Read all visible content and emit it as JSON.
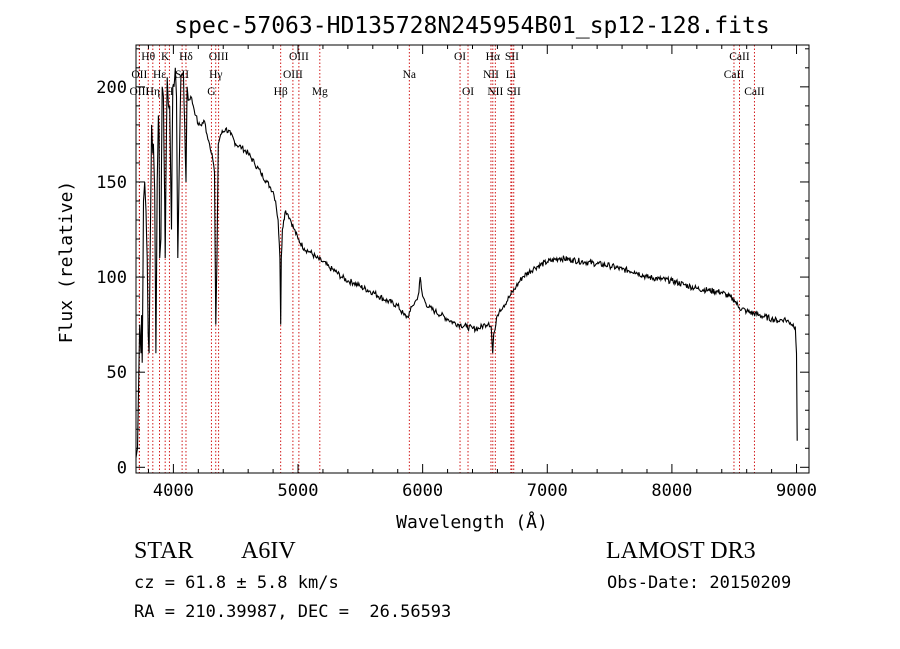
{
  "chart_data": {
    "type": "line",
    "title": "spec-57063-HD135728N245954B01_sp12-128.fits",
    "xlabel": "Wavelength (Å)",
    "ylabel": "Flux (relative)",
    "xlim": [
      3700,
      9100
    ],
    "ylim": [
      -3,
      222
    ],
    "x_ticks": [
      4000,
      5000,
      6000,
      7000,
      8000,
      9000
    ],
    "x_tick_labels": [
      "4000",
      "5000",
      "6000",
      "7000",
      "8000",
      "9000"
    ],
    "y_ticks": [
      0,
      50,
      100,
      150,
      200
    ],
    "y_tick_labels": [
      "0",
      "50",
      "100",
      "150",
      "200"
    ],
    "series": [
      {
        "name": "spectrum",
        "x": [
          3700,
          3712,
          3720,
          3730,
          3740,
          3745,
          3750,
          3760,
          3770,
          3780,
          3790,
          3798,
          3805,
          3815,
          3825,
          3835,
          3840,
          3850,
          3860,
          3870,
          3880,
          3885,
          3890,
          3900,
          3910,
          3920,
          3930,
          3934,
          3940,
          3950,
          3960,
          3970,
          3975,
          3985,
          3995,
          4005,
          4015,
          4025,
          4035,
          4045,
          4060,
          4080,
          4101,
          4110,
          4120,
          4140,
          4160,
          4180,
          4200,
          4220,
          4250,
          4270,
          4290,
          4310,
          4330,
          4340,
          4350,
          4360,
          4380,
          4420,
          4460,
          4500,
          4550,
          4600,
          4650,
          4700,
          4750,
          4780,
          4800,
          4820,
          4840,
          4855,
          4861,
          4866,
          4875,
          4885,
          4900,
          4920,
          4940,
          4970,
          5000,
          5050,
          5100,
          5150,
          5200,
          5250,
          5300,
          5350,
          5400,
          5450,
          5500,
          5600,
          5700,
          5800,
          5850,
          5880,
          5900,
          5920,
          5950,
          5970,
          5980,
          5990,
          6000,
          6020,
          6050,
          6100,
          6150,
          6200,
          6250,
          6300,
          6350,
          6400,
          6450,
          6500,
          6530,
          6550,
          6562,
          6570,
          6580,
          6600,
          6620,
          6650,
          6700,
          6750,
          6800,
          6900,
          7000,
          7100,
          7200,
          7300,
          7400,
          7500,
          7600,
          7700,
          7800,
          7900,
          8000,
          8100,
          8200,
          8300,
          8400,
          8500,
          8540,
          8600,
          8700,
          8800,
          8850,
          8900,
          8950,
          8990,
          9000,
          9005
        ],
        "y": [
          5,
          10,
          40,
          75,
          60,
          80,
          55,
          140,
          150,
          135,
          110,
          70,
          60,
          120,
          180,
          165,
          170,
          145,
          60,
          150,
          185,
          175,
          110,
          120,
          200,
          195,
          140,
          110,
          150,
          205,
          190,
          190,
          168,
          125,
          200,
          200,
          210,
          195,
          110,
          150,
          205,
          208,
          150,
          200,
          193,
          195,
          190,
          185,
          180,
          180,
          182,
          175,
          170,
          165,
          155,
          75,
          110,
          170,
          175,
          178,
          175,
          170,
          168,
          165,
          160,
          155,
          150,
          147,
          145,
          140,
          130,
          110,
          75,
          110,
          125,
          130,
          135,
          133,
          130,
          125,
          120,
          115,
          113,
          110,
          108,
          105,
          103,
          100,
          98,
          97,
          95,
          92,
          88,
          85,
          80,
          79,
          82,
          85,
          88,
          92,
          100,
          94,
          90,
          87,
          84,
          82,
          80,
          78,
          76,
          75,
          74,
          73,
          73,
          75,
          76,
          74,
          60,
          70,
          72,
          80,
          83,
          85,
          90,
          95,
          100,
          105,
          108,
          110,
          109,
          108,
          107,
          106,
          104,
          103,
          100,
          99,
          98,
          96,
          94,
          93,
          92,
          88,
          84,
          82,
          80,
          78,
          77,
          78,
          76,
          74,
          60,
          14
        ]
      }
    ],
    "spectral_lines": [
      {
        "label": "Hθ",
        "wavelength": 3798,
        "row": 0
      },
      {
        "label": "OII",
        "wavelength": 3727,
        "row": 1
      },
      {
        "label": "OIII",
        "wavelength": 3727,
        "row": 2
      },
      {
        "label": "Hη",
        "wavelength": 3835,
        "row": 2
      },
      {
        "label": "Hε",
        "wavelength": 3889,
        "row": 1
      },
      {
        "label": "K",
        "wavelength": 3934,
        "row": 0
      },
      {
        "label": "H",
        "wavelength": 3968,
        "row": 2
      },
      {
        "label": "Hδ",
        "wavelength": 4101,
        "row": 0
      },
      {
        "label": "SII",
        "wavelength": 4070,
        "row": 1
      },
      {
        "label": "OIII",
        "wavelength": 4363,
        "row": 0
      },
      {
        "label": "Hγ",
        "wavelength": 4340,
        "row": 1
      },
      {
        "label": "G",
        "wavelength": 4305,
        "row": 2
      },
      {
        "label": "Hβ",
        "wavelength": 4861,
        "row": 2
      },
      {
        "label": "OIII",
        "wavelength": 5007,
        "row": 0
      },
      {
        "label": "OIII",
        "wavelength": 4959,
        "row": 1
      },
      {
        "label": "Mg",
        "wavelength": 5175,
        "row": 2
      },
      {
        "label": "Na",
        "wavelength": 5893,
        "row": 1
      },
      {
        "label": "OI",
        "wavelength": 6300,
        "row": 0
      },
      {
        "label": "OI",
        "wavelength": 6364,
        "row": 2
      },
      {
        "label": "Hα",
        "wavelength": 6563,
        "row": 0
      },
      {
        "label": "NII",
        "wavelength": 6548,
        "row": 1
      },
      {
        "label": "NII",
        "wavelength": 6583,
        "row": 2
      },
      {
        "label": "SII",
        "wavelength": 6716,
        "row": 0
      },
      {
        "label": "Li",
        "wavelength": 6708,
        "row": 1
      },
      {
        "label": "SII",
        "wavelength": 6731,
        "row": 2
      },
      {
        "label": "CaII",
        "wavelength": 8542,
        "row": 0
      },
      {
        "label": "CaII",
        "wavelength": 8498,
        "row": 1
      },
      {
        "label": "CaII",
        "wavelength": 8662,
        "row": 2
      }
    ]
  },
  "info": {
    "object_class": "STAR",
    "subclass": "A6IV",
    "cz": "cz = 61.8 ± 5.8 km/s",
    "coords": "RA = 210.39987, DEC =  26.56593",
    "survey": "LAMOST DR3",
    "obs_date": "Obs-Date: 20150209"
  },
  "colors": {
    "spectrum": "#000000",
    "line_marker": "#cc0000",
    "text": "#000000"
  }
}
